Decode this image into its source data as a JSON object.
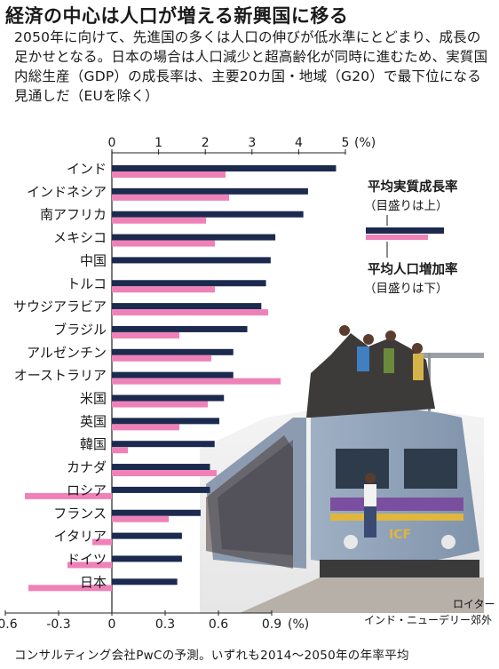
{
  "title": "経済の中心は人口が増える新興国に移る",
  "lede": "2050年に向けて、先進国の多くは人口の伸びが低水準にとどまり、成長の足かせとなる。日本の場合は人口減少と超高齢化が同時に進むため、実質国内総生産（GDP）の成長率は、主要20カ国・地域（G20）で最下位になる見通しだ（EUを除く）",
  "footer": "コンサルティング会社PwCの予測。いずれも2014～2050年の年率平均",
  "photo_caption": "インド・ニューデリー郊外",
  "photo_credit": "ロイター",
  "colors": {
    "gdp": "#1b2a4e",
    "population": "#ee82b8"
  },
  "legend": {
    "gdp_title": "平均実質成長率",
    "gdp_note": "（目盛りは上）",
    "pop_title": "平均人口増加率",
    "pop_note": "（目盛りは下）"
  },
  "chart_data": {
    "type": "bar",
    "orientation": "horizontal",
    "categories": [
      "インド",
      "インドネシア",
      "南アフリカ",
      "メキシコ",
      "中国",
      "トルコ",
      "サウジアラビア",
      "ブラジル",
      "アルゼンチン",
      "オーストラリア",
      "米国",
      "英国",
      "韓国",
      "カナダ",
      "ロシア",
      "フランス",
      "イタリア",
      "ドイツ",
      "日本"
    ],
    "series": [
      {
        "name": "平均実質成長率",
        "axis": "top",
        "values": [
          4.8,
          4.2,
          4.1,
          3.5,
          3.4,
          3.3,
          3.2,
          2.9,
          2.6,
          2.6,
          2.4,
          2.3,
          2.2,
          2.1,
          2.1,
          1.9,
          1.5,
          1.5,
          1.4
        ]
      },
      {
        "name": "平均人口増加率",
        "axis": "bottom",
        "values": [
          0.64,
          0.66,
          0.53,
          0.58,
          0.0,
          0.58,
          0.88,
          0.38,
          0.56,
          0.95,
          0.54,
          0.38,
          0.09,
          0.59,
          -0.49,
          0.32,
          -0.11,
          -0.25,
          -0.47
        ]
      }
    ],
    "top_axis": {
      "min": 0,
      "max": 5,
      "ticks": [
        "0",
        "1",
        "2",
        "3",
        "4",
        "5"
      ],
      "unit": "(%)"
    },
    "bottom_axis": {
      "min": -0.6,
      "max": 0.9,
      "ticks": [
        "-0.6",
        "-0.3",
        "0",
        "0.3",
        "0.6",
        "0.9"
      ],
      "unit": "(%)"
    }
  }
}
